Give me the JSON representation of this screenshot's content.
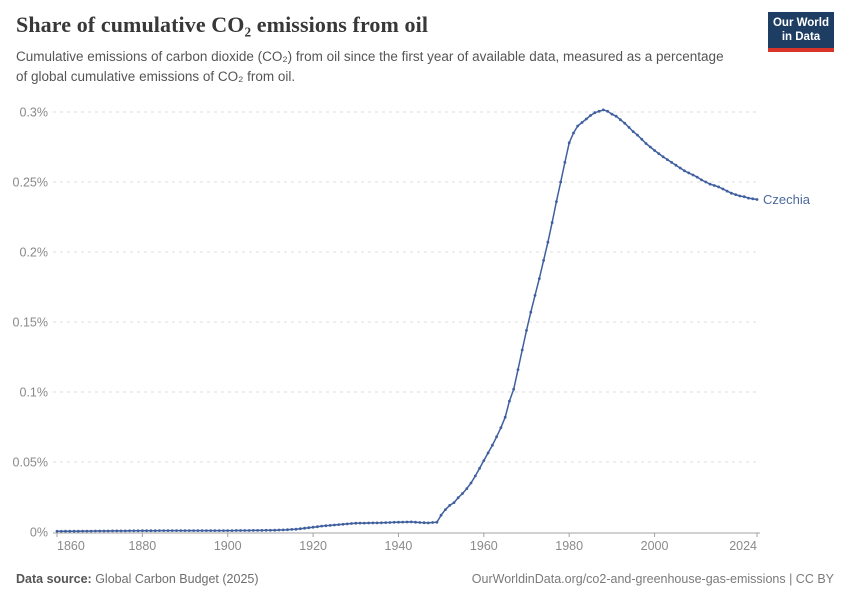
{
  "header": {
    "title": "Share of cumulative CO₂ emissions from oil",
    "subtitle": "Cumulative emissions of carbon dioxide (CO₂) from oil since the first year of available data, measured as a percentage of global cumulative emissions of CO₂ from oil."
  },
  "logo": {
    "line1": "Our World",
    "line2": "in Data",
    "bg_color": "#1d3d63",
    "bar_color": "#d8352a"
  },
  "footer": {
    "source_label": "Data source:",
    "source_value": " Global Carbon Budget (2025)",
    "right_text": "OurWorldinData.org/co2-and-greenhouse-gas-emissions | CC BY"
  },
  "colors": {
    "line": "#3f5f9e",
    "entity_label": "#4c6a9c",
    "gridline": "#dedede",
    "axis": "#a3a3a3",
    "tick_label": "#8a8a8a"
  },
  "chart_data": {
    "type": "line",
    "title": "Share of cumulative CO₂ emissions from oil",
    "series": [
      {
        "name": "Czechia",
        "points": [
          [
            1860,
            0.0005
          ],
          [
            1865,
            0.0006
          ],
          [
            1870,
            0.0007
          ],
          [
            1875,
            0.0008
          ],
          [
            1880,
            0.0009
          ],
          [
            1885,
            0.001
          ],
          [
            1890,
            0.001
          ],
          [
            1895,
            0.001
          ],
          [
            1900,
            0.001
          ],
          [
            1905,
            0.0011
          ],
          [
            1910,
            0.0012
          ],
          [
            1913,
            0.0015
          ],
          [
            1916,
            0.002
          ],
          [
            1918,
            0.0027
          ],
          [
            1920,
            0.0034
          ],
          [
            1922,
            0.0042
          ],
          [
            1925,
            0.005
          ],
          [
            1928,
            0.0058
          ],
          [
            1930,
            0.0063
          ],
          [
            1933,
            0.0064
          ],
          [
            1936,
            0.0066
          ],
          [
            1940,
            0.007
          ],
          [
            1943,
            0.0072
          ],
          [
            1945,
            0.0068
          ],
          [
            1947,
            0.0065
          ],
          [
            1949,
            0.007
          ],
          [
            1950,
            0.012
          ],
          [
            1951,
            0.016
          ],
          [
            1952,
            0.019
          ],
          [
            1953,
            0.021
          ],
          [
            1954,
            0.0245
          ],
          [
            1955,
            0.0275
          ],
          [
            1956,
            0.031
          ],
          [
            1957,
            0.035
          ],
          [
            1958,
            0.04
          ],
          [
            1959,
            0.0455
          ],
          [
            1960,
            0.051
          ],
          [
            1961,
            0.0565
          ],
          [
            1962,
            0.062
          ],
          [
            1963,
            0.068
          ],
          [
            1964,
            0.0745
          ],
          [
            1965,
            0.082
          ],
          [
            1966,
            0.0935
          ],
          [
            1967,
            0.102
          ],
          [
            1968,
            0.116
          ],
          [
            1969,
            0.13
          ],
          [
            1970,
            0.144
          ],
          [
            1971,
            0.157
          ],
          [
            1972,
            0.169
          ],
          [
            1973,
            0.181
          ],
          [
            1974,
            0.194
          ],
          [
            1975,
            0.207
          ],
          [
            1976,
            0.221
          ],
          [
            1977,
            0.236
          ],
          [
            1978,
            0.25
          ],
          [
            1979,
            0.264
          ],
          [
            1980,
            0.278
          ],
          [
            1981,
            0.285
          ],
          [
            1982,
            0.29
          ],
          [
            1983,
            0.2925
          ],
          [
            1984,
            0.295
          ],
          [
            1985,
            0.2975
          ],
          [
            1986,
            0.2995
          ],
          [
            1987,
            0.3005
          ],
          [
            1988,
            0.3015
          ],
          [
            1989,
            0.3005
          ],
          [
            1990,
            0.2985
          ],
          [
            1991,
            0.297
          ],
          [
            1992,
            0.2945
          ],
          [
            1993,
            0.292
          ],
          [
            1994,
            0.289
          ],
          [
            1995,
            0.286
          ],
          [
            1996,
            0.2835
          ],
          [
            1997,
            0.2805
          ],
          [
            1998,
            0.2775
          ],
          [
            1999,
            0.275
          ],
          [
            2000,
            0.2725
          ],
          [
            2001,
            0.2703
          ],
          [
            2002,
            0.268
          ],
          [
            2003,
            0.266
          ],
          [
            2004,
            0.264
          ],
          [
            2005,
            0.262
          ],
          [
            2006,
            0.26
          ],
          [
            2007,
            0.258
          ],
          [
            2008,
            0.2565
          ],
          [
            2009,
            0.255
          ],
          [
            2010,
            0.2535
          ],
          [
            2011,
            0.2515
          ],
          [
            2012,
            0.25
          ],
          [
            2013,
            0.2485
          ],
          [
            2014,
            0.2475
          ],
          [
            2015,
            0.2465
          ],
          [
            2016,
            0.245
          ],
          [
            2017,
            0.2435
          ],
          [
            2018,
            0.242
          ],
          [
            2019,
            0.241
          ],
          [
            2020,
            0.24
          ],
          [
            2021,
            0.2395
          ],
          [
            2022,
            0.2385
          ],
          [
            2023,
            0.238
          ],
          [
            2024,
            0.2375
          ]
        ]
      }
    ],
    "x_ticks": [
      1860,
      1880,
      1900,
      1920,
      1940,
      1960,
      1980,
      2000,
      2024
    ],
    "y_ticks": [
      {
        "v": 0,
        "label": "0%"
      },
      {
        "v": 0.05,
        "label": "0.05%"
      },
      {
        "v": 0.1,
        "label": "0.1%"
      },
      {
        "v": 0.15,
        "label": "0.15%"
      },
      {
        "v": 0.2,
        "label": "0.2%"
      },
      {
        "v": 0.25,
        "label": "0.25%"
      },
      {
        "v": 0.3,
        "label": "0.3%"
      }
    ],
    "xlim": [
      1860,
      2024
    ],
    "ylim": [
      0,
      0.3
    ],
    "xlabel": "",
    "ylabel": "",
    "grid": "dashed-horizontal",
    "legend_position": "end-of-line-label",
    "resolution": "annual"
  }
}
